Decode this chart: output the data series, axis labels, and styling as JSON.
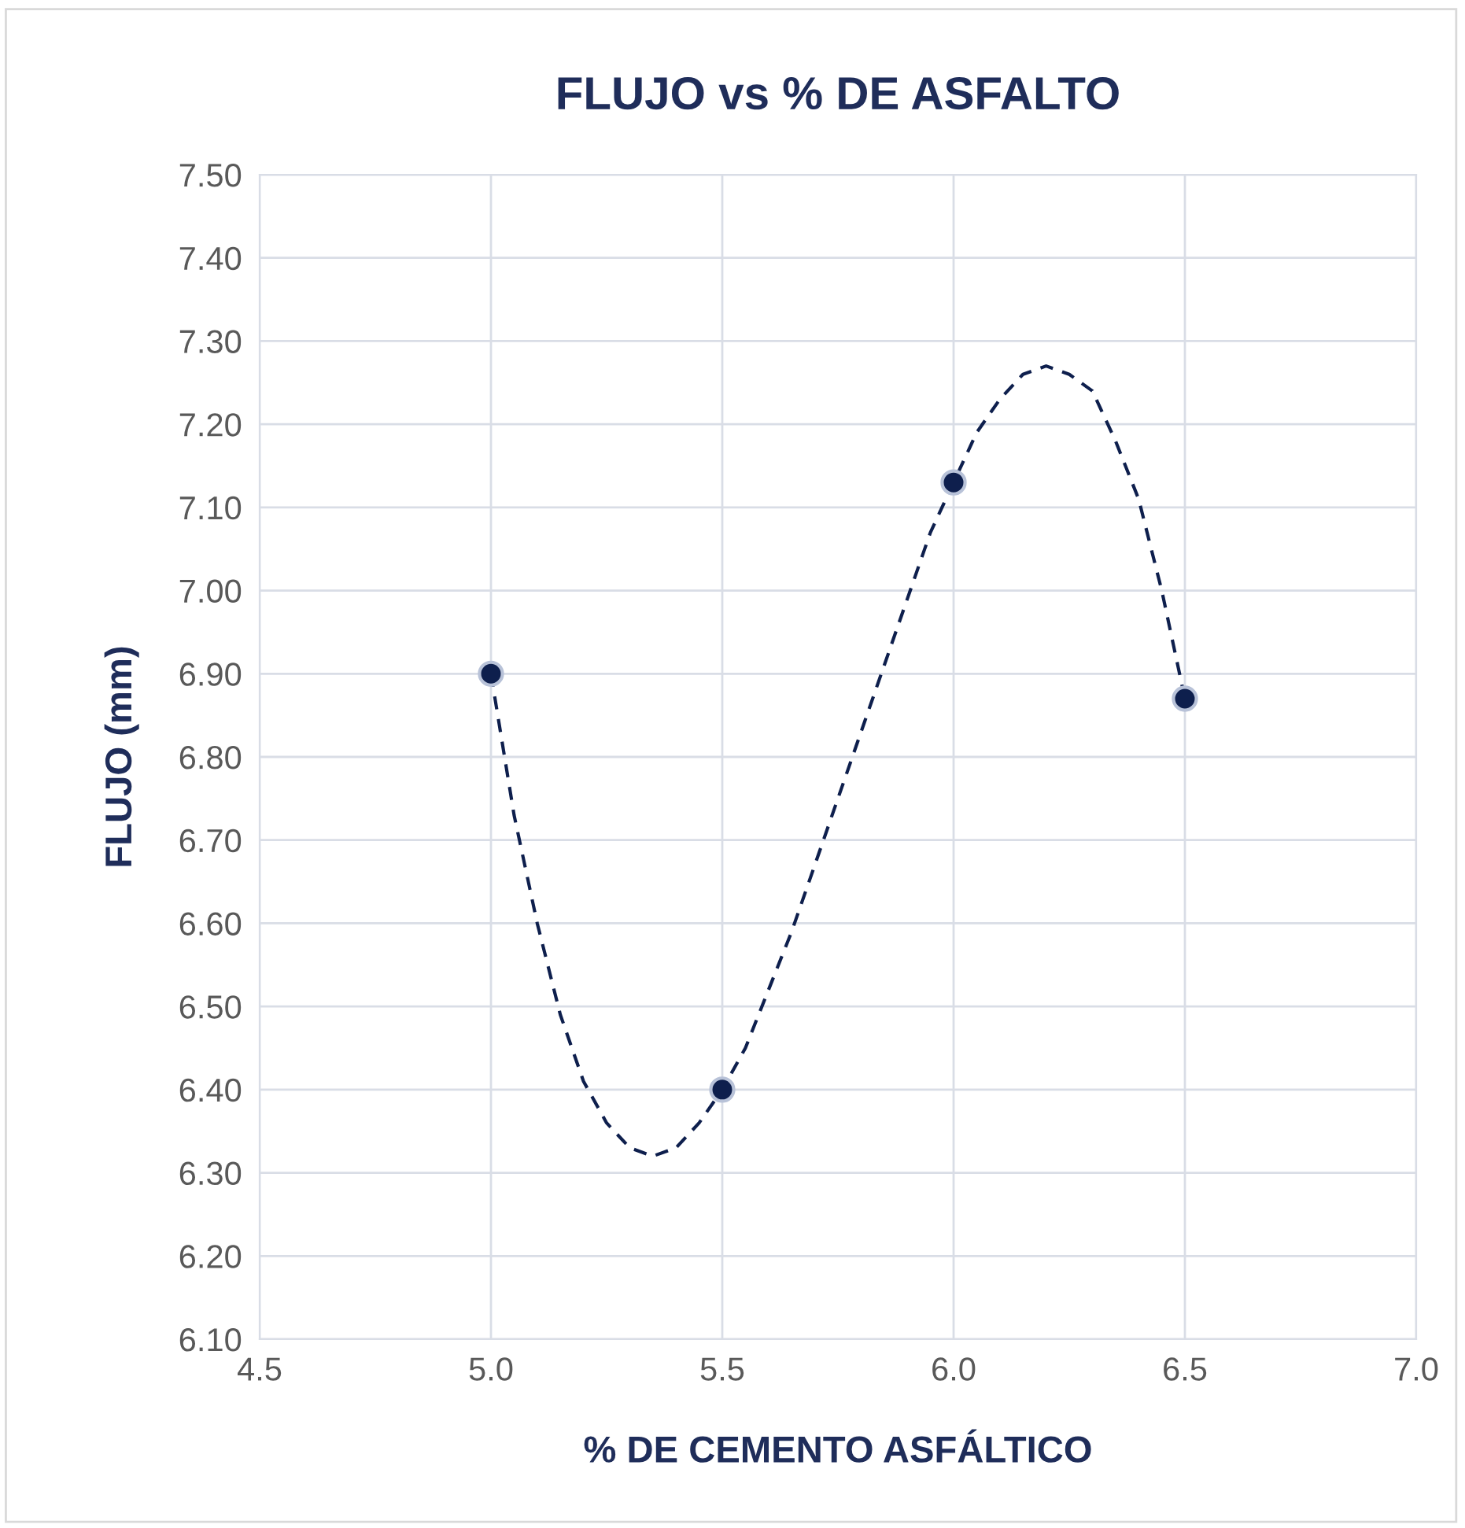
{
  "chart_data": {
    "type": "scatter",
    "title": "FLUJO vs % DE ASFALTO",
    "xlabel": "% DE CEMENTO ASFÁLTICO",
    "ylabel": "FLUJO (mm)",
    "xlim": [
      4.5,
      7.0
    ],
    "xticks": [
      {
        "value": 4.5,
        "label": "4.5"
      },
      {
        "value": 5.0,
        "label": "5.0"
      },
      {
        "value": 5.5,
        "label": "5.5"
      },
      {
        "value": 6.0,
        "label": "6.0"
      },
      {
        "value": 6.5,
        "label": "6.5"
      },
      {
        "value": 7.0,
        "label": "7.0"
      }
    ],
    "ylim": [
      6.1,
      7.5
    ],
    "yticks": [
      {
        "value": 6.1,
        "label": "6.10"
      },
      {
        "value": 6.2,
        "label": "6.20"
      },
      {
        "value": 6.3,
        "label": "6.30"
      },
      {
        "value": 6.4,
        "label": "6.40"
      },
      {
        "value": 6.5,
        "label": "6.50"
      },
      {
        "value": 6.6,
        "label": "6.60"
      },
      {
        "value": 6.7,
        "label": "6.70"
      },
      {
        "value": 6.8,
        "label": "6.80"
      },
      {
        "value": 6.9,
        "label": "6.90"
      },
      {
        "value": 7.0,
        "label": "7.00"
      },
      {
        "value": 7.1,
        "label": "7.10"
      },
      {
        "value": 7.2,
        "label": "7.20"
      },
      {
        "value": 7.3,
        "label": "7.30"
      },
      {
        "value": 7.4,
        "label": "7.40"
      },
      {
        "value": 7.5,
        "label": "7.50"
      }
    ],
    "grid": true,
    "legend": false,
    "series": [
      {
        "type": "line",
        "color": "#0e1f4d",
        "line_style": "dashed",
        "marker": "none",
        "x": [
          5.0,
          5.05,
          5.1,
          5.15,
          5.2,
          5.25,
          5.3,
          5.35,
          5.4,
          5.45,
          5.5,
          5.55,
          5.6,
          5.65,
          5.7,
          5.75,
          5.8,
          5.85,
          5.9,
          5.95,
          6.0,
          6.05,
          6.1,
          6.15,
          6.2,
          6.25,
          6.3,
          6.35,
          6.4,
          6.45,
          6.5
        ],
        "values": [
          6.9,
          6.73,
          6.6,
          6.49,
          6.41,
          6.36,
          6.33,
          6.32,
          6.33,
          6.36,
          6.4,
          6.45,
          6.52,
          6.59,
          6.67,
          6.75,
          6.83,
          6.91,
          6.99,
          7.07,
          7.13,
          7.19,
          7.23,
          7.26,
          7.27,
          7.26,
          7.24,
          7.18,
          7.11,
          7.0,
          6.87
        ]
      },
      {
        "color": "#0e1f4d",
        "marker": "circle",
        "x": [
          5.0,
          5.5,
          6.0,
          6.5
        ],
        "values": [
          6.9,
          6.4,
          7.13,
          6.87
        ]
      }
    ]
  }
}
